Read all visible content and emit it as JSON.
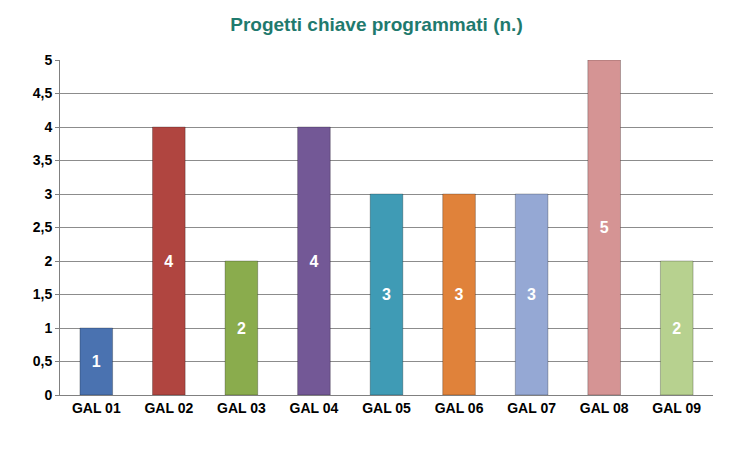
{
  "chart_data": {
    "type": "bar",
    "title": "Progetti chiave programmati (n.)",
    "categories": [
      "GAL 01",
      "GAL 02",
      "GAL 03",
      "GAL 04",
      "GAL 05",
      "GAL 06",
      "GAL 07",
      "GAL 08",
      "GAL 09"
    ],
    "values": [
      1,
      4,
      2,
      4,
      3,
      3,
      3,
      5,
      2
    ],
    "colors": [
      "#4a72b0",
      "#b04540",
      "#8aac4d",
      "#735896",
      "#3f9bb5",
      "#e0823a",
      "#95a8d4",
      "#d59494",
      "#b7d18f"
    ],
    "ylim": [
      0,
      5
    ],
    "yticks": [
      0,
      {
        "value": 0.5,
        "label": "0,5"
      },
      1,
      {
        "value": 1.5,
        "label": "1,5"
      },
      2,
      {
        "value": 2.5,
        "label": "2,5"
      },
      3,
      {
        "value": 3.5,
        "label": "3,5"
      },
      4,
      {
        "value": 4.5,
        "label": "4,5"
      },
      5
    ],
    "grid": true,
    "data_labels": true
  }
}
